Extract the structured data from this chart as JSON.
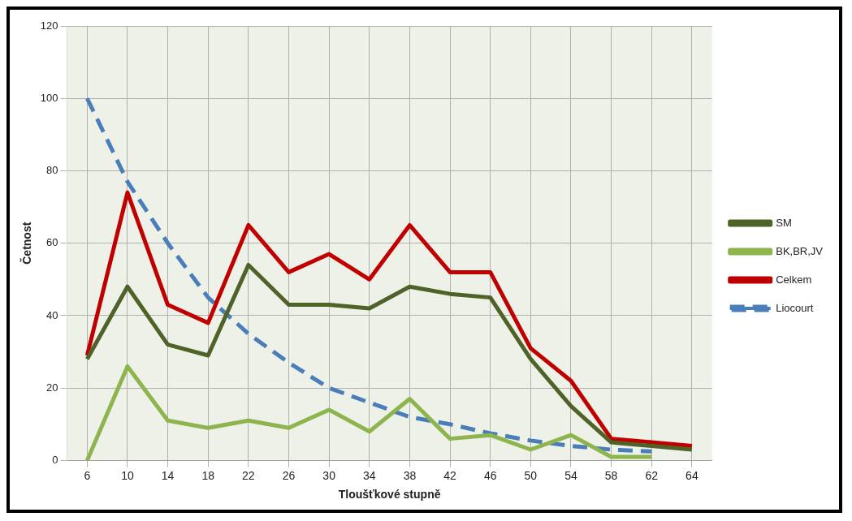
{
  "chart_data": {
    "type": "line",
    "xlabel": "Tloušťkové stupně",
    "ylabel": "Četnost",
    "categories": [
      "6",
      "10",
      "14",
      "18",
      "22",
      "26",
      "30",
      "34",
      "38",
      "42",
      "46",
      "50",
      "54",
      "58",
      "62",
      "64"
    ],
    "series": [
      {
        "name": "SM",
        "color": "#4f6228",
        "values": [
          28,
          48,
          32,
          29,
          54,
          43,
          43,
          42,
          48,
          46,
          45,
          28,
          15,
          5,
          4,
          3
        ]
      },
      {
        "name": "BK,BR,JV",
        "color": "#8db44d",
        "values": [
          0,
          26,
          11,
          9,
          11,
          9,
          14,
          8,
          17,
          6,
          7,
          3,
          7,
          1,
          1,
          null
        ]
      },
      {
        "name": "Celkem",
        "color": "#c00000",
        "values": [
          29,
          74,
          43,
          38,
          65,
          52,
          57,
          50,
          65,
          52,
          52,
          31,
          22,
          6,
          5,
          4
        ]
      },
      {
        "name": "Liocourt",
        "color": "#4a7ebb",
        "line_style": "dashed",
        "values": [
          100,
          77,
          60,
          45,
          35,
          27,
          20,
          16,
          12,
          10,
          7.5,
          5.5,
          4,
          3,
          2.5,
          null
        ]
      }
    ],
    "ylim": [
      0,
      120
    ],
    "yticks": [
      0,
      20,
      40,
      60,
      80,
      100,
      120
    ],
    "grid": true,
    "legend": "right",
    "marker": "none",
    "line_style": "solid"
  }
}
